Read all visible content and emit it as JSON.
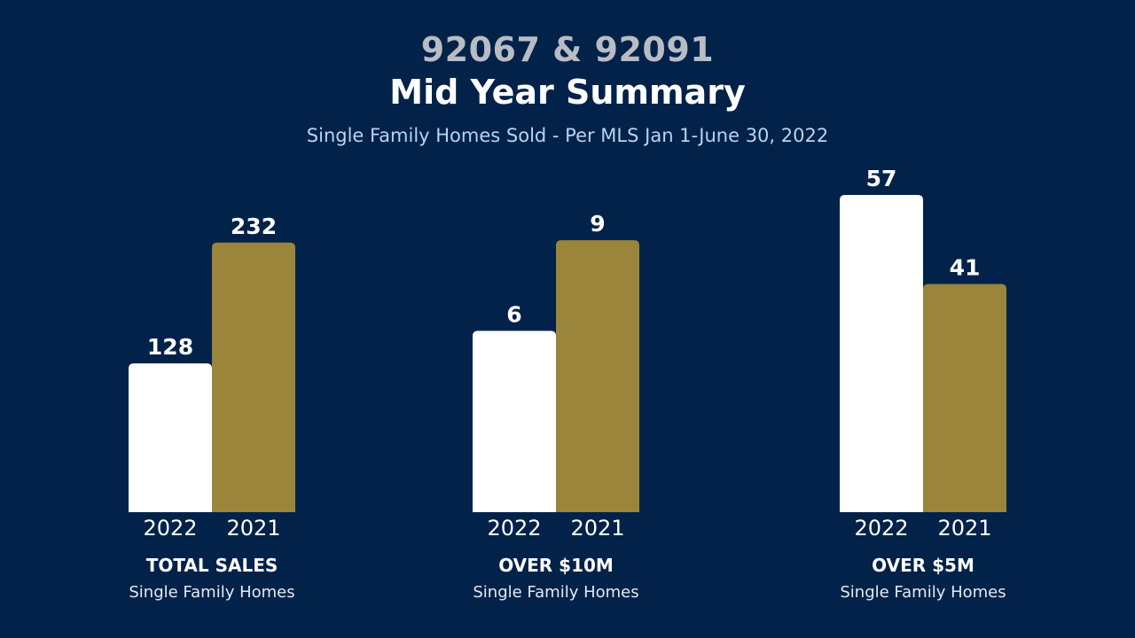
{
  "header": {
    "zip_codes": "92067 & 92091",
    "title": "Mid Year Summary",
    "subtitle": "Single Family Homes Sold - Per MLS Jan 1-June 30, 2022"
  },
  "colors": {
    "background": "#02224a",
    "bar_2022": "#ffffff",
    "bar_2021": "#9a853a"
  },
  "chart_data": [
    {
      "type": "bar",
      "title": "TOTAL SALES",
      "subtitle": "Single Family Homes",
      "categories": [
        "2022",
        "2021"
      ],
      "values": [
        128,
        232
      ],
      "ylim": [
        0,
        273
      ]
    },
    {
      "type": "bar",
      "title": "OVER $10M",
      "subtitle": "Single Family Homes",
      "categories": [
        "2022",
        "2021"
      ],
      "values": [
        6,
        9
      ],
      "ylim": [
        0,
        10.5
      ]
    },
    {
      "type": "bar",
      "title": "OVER $5M",
      "subtitle": "Single Family Homes",
      "categories": [
        "2022",
        "2021"
      ],
      "values": [
        57,
        41
      ],
      "ylim": [
        0,
        57
      ]
    }
  ]
}
